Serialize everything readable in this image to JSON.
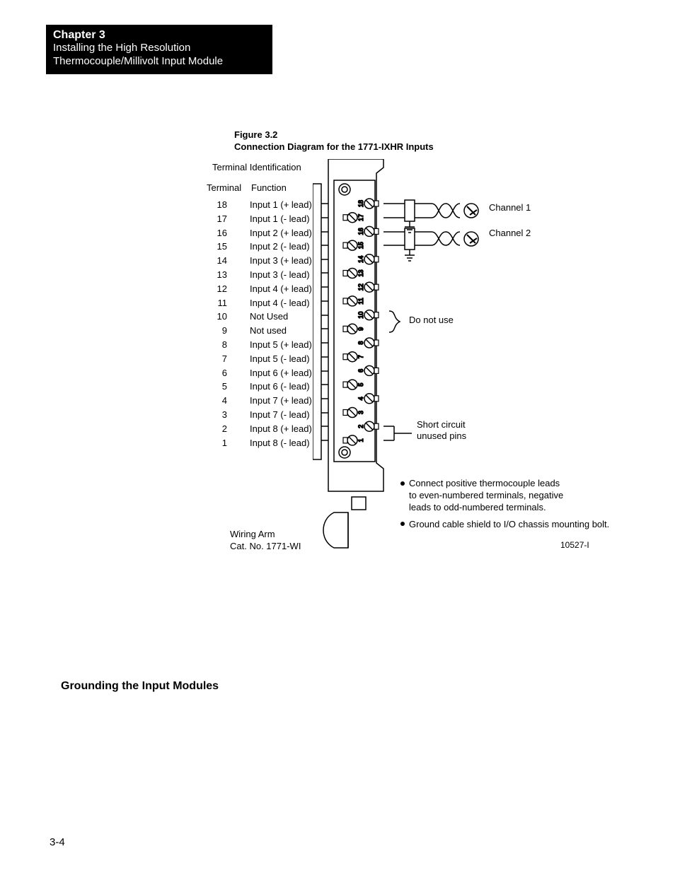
{
  "header": {
    "chapter": "Chapter 3",
    "subtitle_l1": "Installing the High Resolution",
    "subtitle_l2": "Thermocouple/Millivolt Input Module"
  },
  "figure": {
    "number": "Figure 3.2",
    "title": "Connection Diagram for the 1771-IXHR Inputs",
    "terminal_id_title": "Terminal Identification",
    "col_terminal": "Terminal",
    "col_function": "Function",
    "rows": [
      {
        "num": "18",
        "func": "Input 1 (+ lead)"
      },
      {
        "num": "17",
        "func": "Input 1 (- lead)"
      },
      {
        "num": "16",
        "func": "Input 2 (+ lead)"
      },
      {
        "num": "15",
        "func": "Input 2 (- lead)"
      },
      {
        "num": "14",
        "func": "Input 3 (+ lead)"
      },
      {
        "num": "13",
        "func": "Input 3 (- lead)"
      },
      {
        "num": "12",
        "func": "Input 4 (+ lead)"
      },
      {
        "num": "11",
        "func": "Input 4 (- lead)"
      },
      {
        "num": "10",
        "func": "Not Used"
      },
      {
        "num": "9",
        "func": "Not used"
      },
      {
        "num": "8",
        "func": "Input 5 (+ lead)"
      },
      {
        "num": "7",
        "func": "Input 5 (- lead)"
      },
      {
        "num": "6",
        "func": "Input 6 (+ lead)"
      },
      {
        "num": "5",
        "func": "Input 6 (- lead)"
      },
      {
        "num": "4",
        "func": "Input 7 (+ lead)"
      },
      {
        "num": "3",
        "func": "Input 7 (- lead)"
      },
      {
        "num": "2",
        "func": "Input 8 (+ lead)"
      },
      {
        "num": "1",
        "func": "Input 8 (- lead)"
      }
    ],
    "do_not_use": "Do not use",
    "channel1": "Channel 1",
    "channel2": "Channel 2",
    "short_circuit_l1": "Short circuit",
    "short_circuit_l2": "unused pins",
    "note1_l1": "Connect positive thermocouple leads",
    "note1_l2": "to even-numbered terminals, negative",
    "note1_l3": "leads to odd-numbered terminals.",
    "note2": "Ground cable shield to I/O chassis mounting bolt.",
    "wiring_arm_l1": "Wiring Arm",
    "wiring_arm_l2": "Cat. No. 1771-WI",
    "ref_num": "10527-I"
  },
  "section": {
    "heading": "Grounding the Input Modules"
  },
  "page_num": "3-4",
  "diagram": {
    "terminal_numbers": [
      "18",
      "17",
      "16",
      "15",
      "14",
      "13",
      "12",
      "11",
      "10",
      "9",
      "8",
      "7",
      "6",
      "5",
      "4",
      "3",
      "2",
      "1"
    ],
    "colors": {
      "stroke": "#000000",
      "fill_white": "#ffffff"
    }
  }
}
